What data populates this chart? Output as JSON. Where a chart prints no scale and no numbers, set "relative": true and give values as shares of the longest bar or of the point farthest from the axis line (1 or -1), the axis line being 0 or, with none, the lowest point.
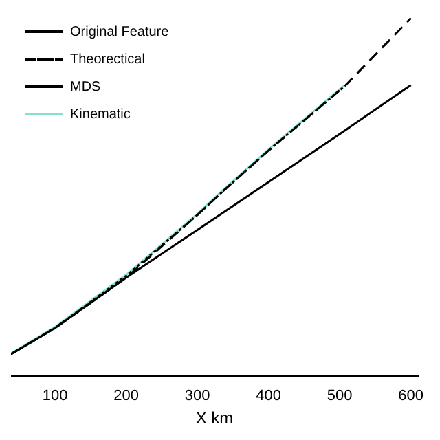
{
  "chart_data": {
    "type": "line",
    "xlabel": "X km",
    "relative": true,
    "xlim": [
      38,
      610
    ],
    "xticks": [
      100,
      200,
      300,
      400,
      500,
      600
    ],
    "legend": "top left",
    "grid": false,
    "marker": "none",
    "series": [
      {
        "name": "Original Feature",
        "color": "#000000",
        "line_style": "solid",
        "x": [
          38,
          100,
          200,
          300,
          400,
          500,
          600
        ],
        "values": [
          0.061,
          0.134,
          0.275,
          0.408,
          0.542,
          0.676,
          0.813
        ]
      },
      {
        "name": "Theorectical",
        "color": "#000000",
        "line_style": "dashed",
        "x": [
          38,
          100,
          200,
          300,
          338,
          400,
          507,
          600
        ],
        "values": [
          0.061,
          0.134,
          0.275,
          0.45,
          0.52,
          0.63,
          0.81,
          1.0
        ]
      },
      {
        "name": "MDS",
        "color": "#000000",
        "line_style": "dotted",
        "x": [
          38,
          100,
          200,
          300,
          338,
          400,
          507
        ],
        "values": [
          0.061,
          0.134,
          0.28,
          0.45,
          0.52,
          0.63,
          0.81
        ]
      },
      {
        "name": "Kinematic",
        "color": "#7fe3d4",
        "line_style": "solid",
        "x": [
          38,
          100,
          200,
          300,
          338,
          400,
          507
        ],
        "values": [
          0.063,
          0.137,
          0.283,
          0.453,
          0.523,
          0.633,
          0.813
        ]
      }
    ]
  }
}
